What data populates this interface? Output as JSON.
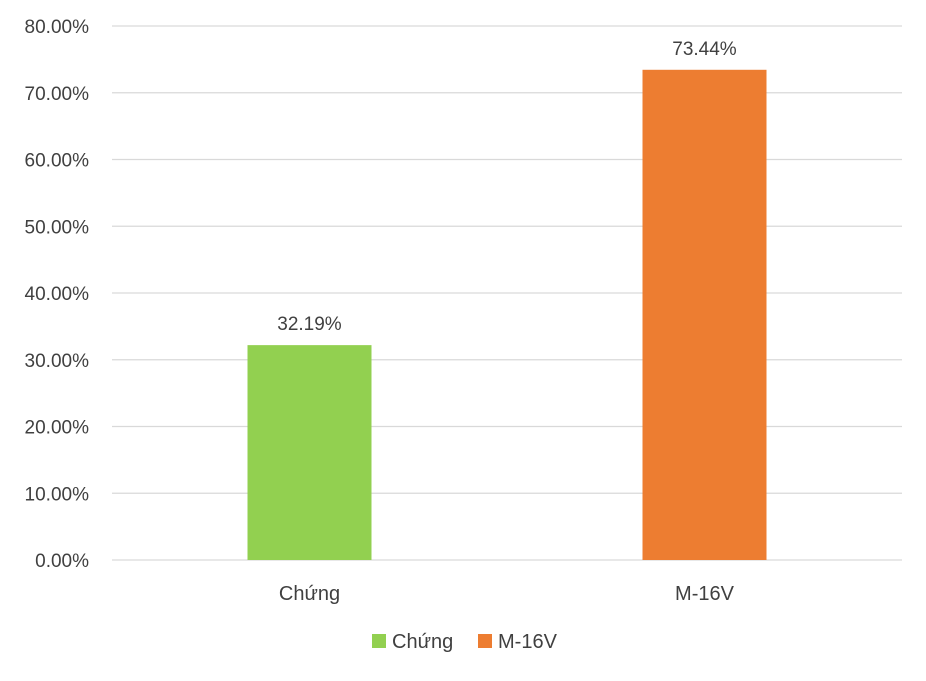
{
  "chart_data": {
    "type": "bar",
    "categories": [
      "Chứng",
      "M-16V"
    ],
    "values": [
      32.19,
      73.44
    ],
    "value_labels": [
      "32.19%",
      "73.44%"
    ],
    "colors": [
      "#92d050",
      "#ed7d31"
    ],
    "ylim": [
      0,
      80
    ],
    "y_ticks": [
      0,
      10,
      20,
      30,
      40,
      50,
      60,
      70,
      80
    ],
    "y_tick_labels": [
      "0.00%",
      "10.00%",
      "20.00%",
      "30.00%",
      "40.00%",
      "50.00%",
      "60.00%",
      "70.00%",
      "80.00%"
    ],
    "grid": true,
    "legend": {
      "position": "bottom",
      "entries": [
        {
          "label": "Chứng",
          "color": "#92d050"
        },
        {
          "label": "M-16V",
          "color": "#ed7d31"
        }
      ]
    },
    "title": "",
    "xlabel": "",
    "ylabel": ""
  }
}
